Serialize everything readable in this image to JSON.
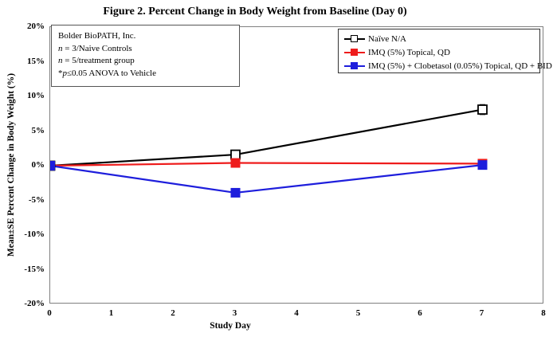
{
  "annotation": {
    "line1": "Bolder BioPATH, Inc.",
    "line2_italic": "n",
    "line2_rest": " = 3/Naive Controls",
    "line3_italic": "n",
    "line3_rest": " = 5/treatment group",
    "line4_star": "*",
    "line4_italic": "p",
    "line4_rest": "≤0.05 ANOVA to Vehicle"
  },
  "chart_data": {
    "type": "line",
    "title": "Figure 2. Percent Change in Body Weight from Baseline (Day 0)",
    "xlabel": "Study Day",
    "ylabel": "Mean±SE Percent Change in Body Weight (%)",
    "x": [
      0,
      3,
      7
    ],
    "series": [
      {
        "name": "Naïve N/A",
        "color": "#000000",
        "marker": "open-square",
        "values": [
          0,
          1.6,
          8.1
        ],
        "se": [
          0,
          0,
          0.7
        ]
      },
      {
        "name": "IMQ (5%) Topical, QD",
        "color": "#ee1c1c",
        "marker": "filled-square",
        "values": [
          0,
          0.4,
          0.3
        ],
        "se": [
          0,
          0,
          0
        ]
      },
      {
        "name": "IMQ (5%) + Clobetasol (0.05%) Topical, QD + BID",
        "color": "#1e1edc",
        "marker": "filled-square",
        "values": [
          0,
          -3.9,
          0.1
        ],
        "se": [
          0,
          0,
          0
        ]
      }
    ],
    "xlim": [
      0,
      8
    ],
    "ylim": [
      -20,
      20
    ],
    "xticks": [
      "0",
      "1",
      "2",
      "3",
      "4",
      "5",
      "6",
      "7",
      "8"
    ],
    "ytick_labels": [
      "20%",
      "15%",
      "10%",
      "5%",
      "0%",
      "-5%",
      "-10%",
      "-15%",
      "-20%"
    ],
    "grid": false,
    "legend_position": "top-right"
  }
}
